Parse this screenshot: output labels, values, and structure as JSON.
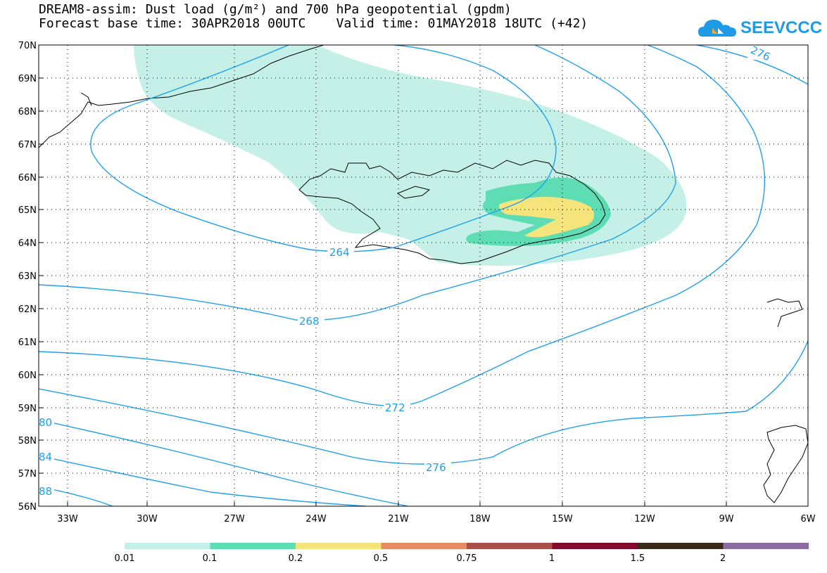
{
  "header": {
    "line1": "DREAM8-assim: Dust load (g/m²) and 700 hPa geopotential (gpdm)",
    "line2": "Forecast base time: 30APR2018 00UTC    Valid time: 01MAY2018 18UTC (+42)"
  },
  "logo": {
    "text": "SEEVCCC",
    "icon": "cloud-icon"
  },
  "map": {
    "lat_labels": [
      "70N",
      "69N",
      "68N",
      "67N",
      "66N",
      "65N",
      "64N",
      "63N",
      "62N",
      "61N",
      "60N",
      "59N",
      "58N",
      "57N",
      "56N"
    ],
    "lon_labels": [
      "33W",
      "30W",
      "27W",
      "24W",
      "21W",
      "18W",
      "15W",
      "12W",
      "9W",
      "6W"
    ],
    "contour_labels": [
      "276",
      "264",
      "268",
      "272",
      "276",
      "80",
      "84",
      "88"
    ],
    "colors": {
      "contour": "#1ea0ef",
      "coast": "#000000"
    }
  },
  "colorbar": {
    "colors": [
      "#c4f0e8",
      "#5edcb4",
      "#f5e47c",
      "#e68c64",
      "#aa504a",
      "#820a2c",
      "#3a2a1a",
      "#8c6ca0"
    ],
    "labels": [
      "0.01",
      "0.1",
      "0.2",
      "0.5",
      "0.75",
      "1",
      "1.5",
      "2"
    ]
  }
}
